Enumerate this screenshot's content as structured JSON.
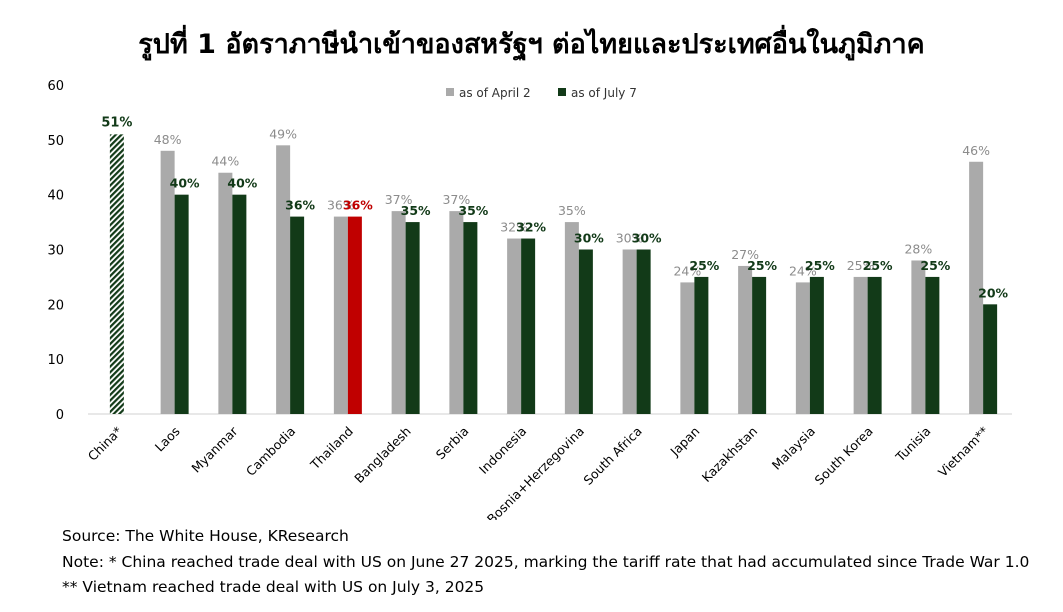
{
  "title": "รูปที่ 1 อัตราภาษีนำเข้าของสหรัฐฯ ต่อไทยและประเทศอื่นในภูมิภาค",
  "notes": {
    "source": "Source: The White House, KResearch",
    "note1": "Note: * China reached trade deal with US on June 27 2025, marking the tariff rate that had accumulated since Trade War 1.0",
    "note2": "** Vietnam reached trade deal with US on July 3, 2025"
  },
  "colors": {
    "april": "#aaaaaa",
    "july": "#123a18",
    "highlight": "#c00000",
    "april_label": "#8c8c8c",
    "july_label": "#123a18"
  },
  "chart_data": {
    "type": "bar",
    "ylim": [
      0,
      60
    ],
    "yticks": [
      0,
      10,
      20,
      30,
      40,
      50,
      60
    ],
    "grid": false,
    "legend_position": "top",
    "categories": [
      "China*",
      "Laos",
      "Myanmar",
      "Cambodia",
      "Thailand",
      "Bangladesh",
      "Serbia",
      "Indonesia",
      "Bosnia+Herzegovina",
      "South Africa",
      "Japan",
      "Kazakhstan",
      "Malaysia",
      "South Korea",
      "Tunisia",
      "Vietnam**"
    ],
    "series": [
      {
        "name": "as of April 2",
        "values": [
          null,
          48,
          44,
          49,
          36,
          37,
          37,
          32,
          35,
          30,
          24,
          27,
          24,
          25,
          28,
          46
        ]
      },
      {
        "name": "as of July 7",
        "values": [
          null,
          40,
          40,
          36,
          36,
          35,
          35,
          32,
          30,
          30,
          25,
          25,
          25,
          25,
          25,
          20
        ]
      }
    ],
    "china": {
      "value": 51,
      "label": "51%",
      "pattern": "hatched"
    },
    "highlight_category": "Thailand"
  }
}
